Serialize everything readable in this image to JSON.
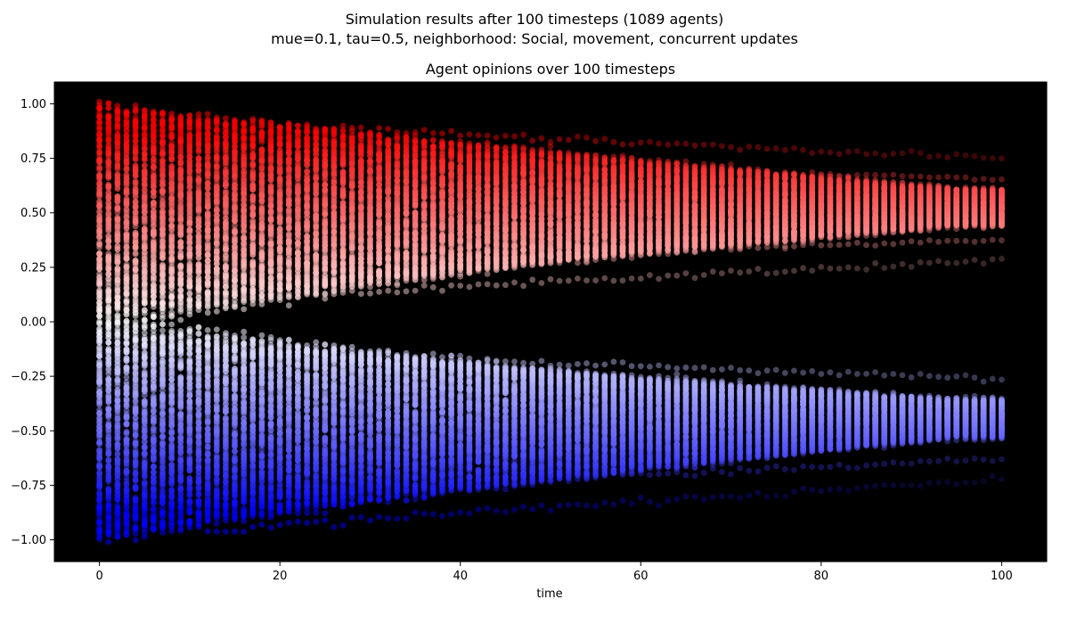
{
  "figure": {
    "suptitle_line1": "Simulation results after 100 timesteps (1089 agents)",
    "suptitle_line2": "mue=0.1, tau=0.5, neighborhood: Social, movement, concurrent  updates"
  },
  "chart_data": {
    "type": "scatter",
    "title": "Agent opinions over 100 timesteps",
    "xlabel": "time",
    "ylabel": "",
    "xlim": [
      -5,
      105
    ],
    "ylim": [
      -1.1,
      1.1
    ],
    "x_ticks": [
      0,
      20,
      40,
      60,
      80,
      100
    ],
    "y_ticks": [
      1.0,
      0.75,
      0.5,
      0.25,
      0.0,
      -0.25,
      -0.5,
      -0.75,
      -1.0
    ],
    "x_tick_labels": [
      "0",
      "20",
      "40",
      "60",
      "80",
      "100"
    ],
    "y_tick_labels": [
      "1.00",
      "0.75",
      "0.50",
      "0.25",
      "0.00",
      "−0.25",
      "−0.50",
      "−0.75",
      "−1.00"
    ],
    "background_color": "#000000",
    "colormap": "bwr (blue -1 → white 0 → red +1), alpha fades with density",
    "timesteps": 101,
    "agents": 1089,
    "initial_distribution": {
      "t": 0,
      "min": -1.0,
      "max": 1.0
    },
    "clusters_final": [
      {
        "name": "positive",
        "center": 0.52,
        "range": [
          0.42,
          0.62
        ],
        "t": 100
      },
      {
        "name": "negative",
        "center": -0.43,
        "range": [
          -0.52,
          -0.3
        ],
        "t": 100
      }
    ],
    "envelope": [
      {
        "t": 0,
        "upper": 1.0,
        "lower": -1.0
      },
      {
        "t": 20,
        "upper": 0.95,
        "lower": -0.96
      },
      {
        "t": 40,
        "upper": 0.88,
        "lower": -0.85
      },
      {
        "t": 60,
        "upper": 0.8,
        "lower": -0.73
      },
      {
        "t": 80,
        "upper": 0.7,
        "lower": -0.65
      },
      {
        "t": 100,
        "upper": 0.66,
        "lower": -0.6
      }
    ]
  }
}
